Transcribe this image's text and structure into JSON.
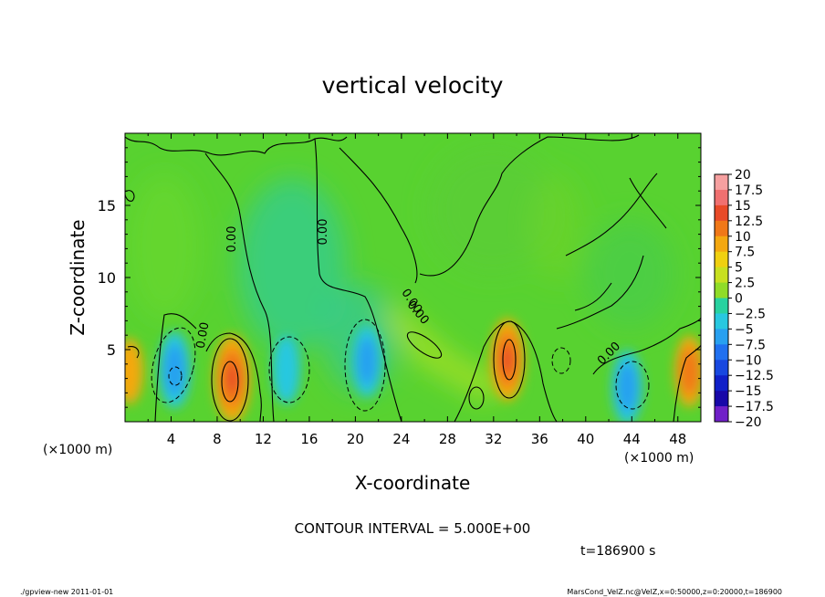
{
  "chart_data": {
    "type": "heatmap",
    "title": "vertical velocity",
    "xlabel": "X-coordinate",
    "ylabel": "Z-coordinate",
    "x_unit": "(×1000 m)",
    "y_unit": "(×1000 m)",
    "xlim": [
      0,
      50
    ],
    "ylim": [
      0,
      20
    ],
    "x_ticks": [
      "4",
      "8",
      "12",
      "16",
      "20",
      "24",
      "28",
      "32",
      "36",
      "40",
      "44",
      "48"
    ],
    "y_ticks": [
      "5",
      "10",
      "15"
    ],
    "contour_interval_text": "CONTOUR INTERVAL = 5.000E+00",
    "time_text": "t=186900 s",
    "contour_labels": [
      "0.00",
      "0.00",
      "0.00",
      "0.00",
      "0.00",
      "0.00"
    ],
    "colorbar": {
      "labels": [
        "20",
        "17.5",
        "15",
        "12.5",
        "10",
        "7.5",
        "5",
        "2.5",
        "0",
        "−2.5",
        "−5",
        "−7.5",
        "−10",
        "−12.5",
        "−15",
        "−17.5",
        "−20"
      ],
      "colors": [
        "#f6a0a0",
        "#f07070",
        "#e84a28",
        "#f07818",
        "#f4a810",
        "#f0d010",
        "#c8e020",
        "#90dc28",
        "#34c834",
        "#28d2a0",
        "#28c8e0",
        "#28a0f0",
        "#2070f0",
        "#1848e0",
        "#1020c8",
        "#1808a8",
        "#7020c8"
      ]
    },
    "extrema": [
      {
        "x": 9.3,
        "z": 3.0,
        "value": 12,
        "sign": "positive"
      },
      {
        "x": 33.2,
        "z": 4.3,
        "value": 10,
        "sign": "positive"
      },
      {
        "x": 4.3,
        "z": 3.6,
        "value": -8,
        "sign": "negative"
      },
      {
        "x": 14.0,
        "z": 3.6,
        "value": -5,
        "sign": "negative"
      },
      {
        "x": 21.0,
        "z": 4.2,
        "value": -6,
        "sign": "negative"
      },
      {
        "x": 43.6,
        "z": 2.4,
        "value": -7,
        "sign": "negative"
      },
      {
        "x": 49.0,
        "z": 3.5,
        "value": 6,
        "sign": "positive"
      },
      {
        "x": 0.4,
        "z": 3.5,
        "value": 4,
        "sign": "positive"
      }
    ]
  },
  "footer": {
    "left": "./gpview-new  2011-01-01",
    "right": "MarsCond_VelZ.nc@VelZ,x=0:50000,z=0:20000,t=186900"
  }
}
